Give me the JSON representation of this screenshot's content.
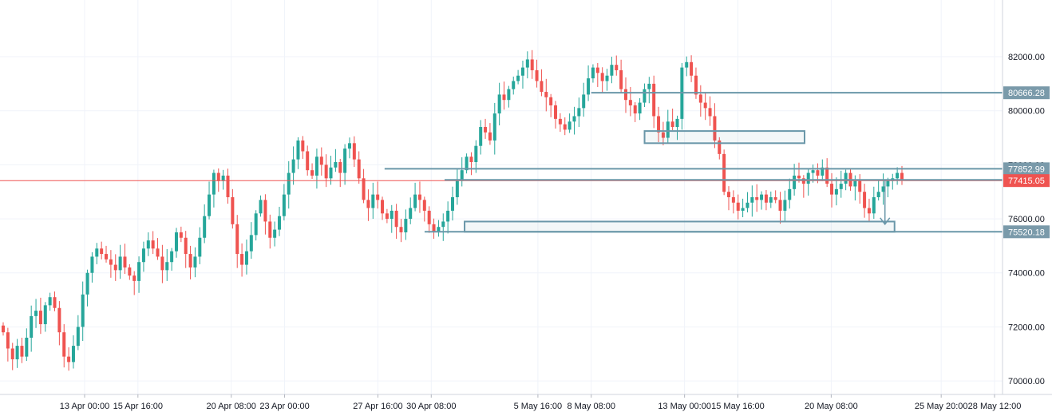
{
  "chart_data": {
    "type": "candlestick",
    "title": "",
    "xlabel": "",
    "ylabel": "",
    "ylim": [
      69500,
      84100
    ],
    "grid": true,
    "colors": {
      "up": "#26a69a",
      "down": "#ef5350",
      "drawing": "#6a97a9",
      "current_price_line": "#ef5350",
      "grid": "#f0f3fa"
    },
    "y_ticks": [
      "70000.00",
      "72000.00",
      "74000.00",
      "76000.00",
      "78000.00",
      "80000.00",
      "82000.00"
    ],
    "x_ticks": [
      "13 Apr 00:00",
      "15 Apr 16:00",
      "20 Apr 08:00",
      "23 Apr 00:00",
      "27 Apr 16:00",
      "30 Apr 08:00",
      "5 May 16:00",
      "8 May 08:00",
      "13 May 00:00",
      "15 May 16:00",
      "20 May 08:00",
      "25 May 20:00",
      "28 May 12:00"
    ],
    "price_labels": [
      {
        "value": 80666.28,
        "label": "80666.28",
        "kind": "level"
      },
      {
        "value": 77852.99,
        "label": "77852.99",
        "kind": "level"
      },
      {
        "value": 77415.05,
        "label": "77415.05",
        "kind": "current"
      },
      {
        "value": 75520.18,
        "label": "75520.18",
        "kind": "level"
      }
    ],
    "horizontal_lines": [
      {
        "y": 80666.28,
        "x_start": "8 May 08:00"
      },
      {
        "y": 77852.99,
        "x_start": "28 Apr 00:00"
      },
      {
        "y": 77415.05,
        "x_start": "1 May 00:00"
      },
      {
        "y": 75520.18,
        "x_start": "30 Apr 00:00"
      }
    ],
    "zones": [
      {
        "x_start": "11 May 00:00",
        "x_end": "19 May 00:00",
        "y_top": 79250,
        "y_bottom": 78800
      },
      {
        "x_start": "2 May 00:00",
        "x_end": "23 May 12:00",
        "y_top": 75900,
        "y_bottom": 75520.18
      }
    ],
    "arrow": {
      "x": "23 May 12:00",
      "y_from": 77415.05,
      "y_to": 75800
    },
    "closes": [
      71800,
      71200,
      70800,
      71300,
      70900,
      71600,
      72400,
      72600,
      72100,
      72800,
      73100,
      72700,
      71800,
      70900,
      70700,
      71300,
      72000,
      73200,
      74000,
      74600,
      74900,
      74700,
      74500,
      74300,
      74100,
      74600,
      74200,
      73900,
      73700,
      74400,
      74900,
      75200,
      74900,
      74600,
      74100,
      74400,
      74800,
      75500,
      75300,
      74700,
      74200,
      74600,
      75300,
      76100,
      76900,
      77700,
      77400,
      77600,
      76800,
      75800,
      74700,
      74300,
      74800,
      75400,
      76200,
      76700,
      75900,
      75300,
      75600,
      76100,
      76900,
      77700,
      78200,
      78900,
      78500,
      77800,
      77600,
      78300,
      78000,
      77500,
      77900,
      78100,
      77700,
      78600,
      78800,
      78200,
      77500,
      76700,
      76400,
      76900,
      76700,
      76200,
      76000,
      76300,
      75700,
      75500,
      76000,
      76400,
      76900,
      76700,
      76300,
      75800,
      75500,
      75700,
      75900,
      76300,
      76800,
      77400,
      77800,
      78300,
      78100,
      78700,
      79400,
      79200,
      78900,
      79900,
      80600,
      80400,
      80800,
      81100,
      81300,
      81600,
      81900,
      81500,
      81100,
      80700,
      80500,
      80200,
      79700,
      79500,
      79300,
      79600,
      79800,
      80100,
      80600,
      81200,
      81600,
      81400,
      81100,
      81300,
      81700,
      81500,
      80800,
      80400,
      80200,
      79900,
      80300,
      80800,
      81000,
      79800,
      79200,
      79000,
      79600,
      79400,
      79700,
      81600,
      81800,
      81300,
      80600,
      80300,
      80100,
      79800,
      78900,
      78400,
      77000,
      76800,
      76600,
      76300,
      76400,
      76600,
      76800,
      76700,
      76900,
      76600,
      76800,
      76700,
      76300,
      76700,
      77100,
      77600,
      77500,
      77300,
      77700,
      77800,
      77600,
      77900,
      77300,
      76900,
      77100,
      77300,
      77700,
      77200,
      77400,
      77000,
      76400,
      76200,
      76800,
      77000,
      77200,
      77400,
      77500,
      77700,
      77415.05
    ]
  }
}
